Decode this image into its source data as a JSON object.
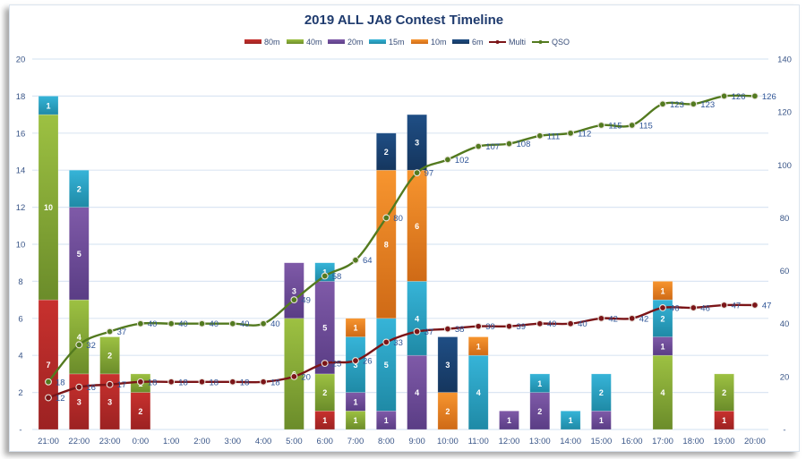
{
  "chart_data": {
    "type": "bar",
    "title": "2019 ALL JA8 Contest Timeline",
    "legend": "top",
    "grid": true,
    "categories": [
      "21:00",
      "22:00",
      "23:00",
      "0:00",
      "1:00",
      "2:00",
      "3:00",
      "4:00",
      "5:00",
      "6:00",
      "7:00",
      "8:00",
      "9:00",
      "10:00",
      "11:00",
      "12:00",
      "13:00",
      "14:00",
      "15:00",
      "16:00",
      "17:00",
      "18:00",
      "19:00",
      "20:00"
    ],
    "y_left": {
      "range": [
        0,
        20
      ],
      "ticks": [
        0,
        2,
        4,
        6,
        8,
        10,
        12,
        14,
        16,
        18,
        20
      ],
      "tick_labels": [
        "-",
        "2",
        "4",
        "6",
        "8",
        "10",
        "12",
        "14",
        "16",
        "18",
        "20"
      ]
    },
    "y_right": {
      "range": [
        0,
        140
      ],
      "ticks": [
        0,
        20,
        40,
        60,
        80,
        100,
        120,
        140
      ],
      "tick_labels": [
        "-",
        "20",
        "40",
        "60",
        "80",
        "100",
        "120",
        "140"
      ]
    },
    "series": [
      {
        "name": "80m",
        "kind": "bar",
        "axis": "left",
        "color": "#c8312e",
        "color_dark": "#9c2222",
        "values": [
          7,
          3,
          3,
          2,
          0,
          0,
          0,
          0,
          0,
          1,
          0,
          0,
          0,
          0,
          0,
          0,
          0,
          0,
          0,
          0,
          0,
          0,
          1,
          0
        ]
      },
      {
        "name": "40m",
        "kind": "bar",
        "axis": "left",
        "color": "#9dc142",
        "color_dark": "#6b8c2a",
        "values": [
          10,
          4,
          2,
          1,
          0,
          0,
          0,
          0,
          6,
          2,
          1,
          0,
          0,
          0,
          0,
          0,
          0,
          0,
          0,
          0,
          4,
          0,
          2,
          0
        ]
      },
      {
        "name": "20m",
        "kind": "bar",
        "axis": "left",
        "color": "#7f5aa8",
        "color_dark": "#5a3d85",
        "values": [
          0,
          5,
          0,
          0,
          0,
          0,
          0,
          0,
          3,
          5,
          1,
          1,
          4,
          0,
          0,
          1,
          2,
          0,
          1,
          0,
          1,
          0,
          0,
          0
        ]
      },
      {
        "name": "15m",
        "kind": "bar",
        "axis": "left",
        "color": "#36b4d8",
        "color_dark": "#1f8aa6",
        "values": [
          1,
          2,
          0,
          0,
          0,
          0,
          0,
          0,
          0,
          1,
          3,
          5,
          4,
          0,
          4,
          0,
          1,
          1,
          2,
          0,
          2,
          0,
          0,
          0
        ]
      },
      {
        "name": "10m",
        "kind": "bar",
        "axis": "left",
        "color": "#f7952f",
        "color_dark": "#cf6a16",
        "values": [
          0,
          0,
          0,
          0,
          0,
          0,
          0,
          0,
          0,
          0,
          1,
          8,
          6,
          2,
          1,
          0,
          0,
          0,
          0,
          0,
          1,
          0,
          0,
          0
        ]
      },
      {
        "name": "6m",
        "kind": "bar",
        "axis": "left",
        "color": "#1f4e85",
        "color_dark": "#15365e",
        "values": [
          0,
          0,
          0,
          0,
          0,
          0,
          0,
          0,
          0,
          0,
          0,
          2,
          3,
          3,
          0,
          0,
          0,
          0,
          0,
          0,
          0,
          0,
          0,
          0
        ]
      },
      {
        "name": "Multi",
        "kind": "line",
        "axis": "right",
        "color": "#7b1518",
        "values": [
          12,
          16,
          17,
          18,
          18,
          18,
          18,
          18,
          20,
          25,
          26,
          33,
          37,
          38,
          39,
          39,
          40,
          40,
          42,
          42,
          46,
          46,
          47,
          47
        ]
      },
      {
        "name": "QSO",
        "kind": "line",
        "axis": "right",
        "color": "#537a1f",
        "values": [
          18,
          32,
          37,
          40,
          40,
          40,
          40,
          40,
          49,
          58,
          64,
          80,
          97,
          102,
          107,
          108,
          111,
          112,
          115,
          115,
          123,
          123,
          126,
          126
        ]
      }
    ]
  }
}
